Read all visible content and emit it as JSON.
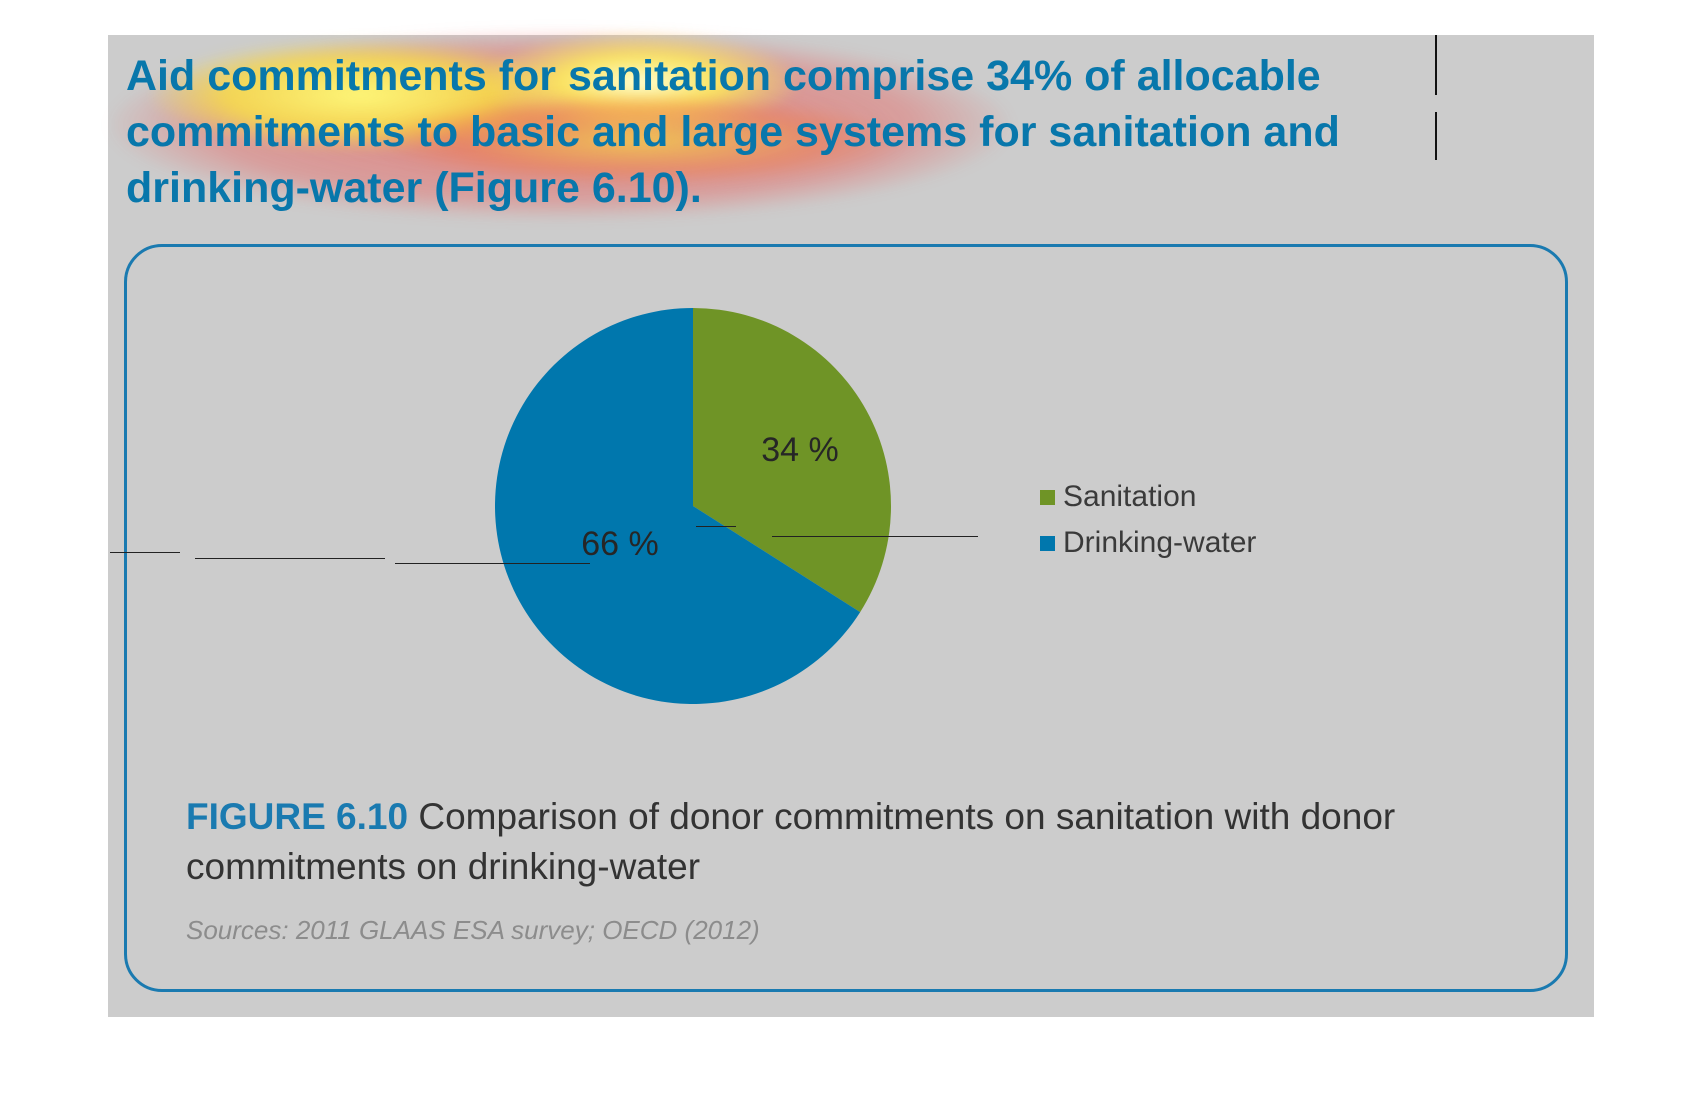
{
  "headline": "Aid commitments for sanitation comprise 34% of allocable commitments to basic and large systems for sanitation and drinking-water (Figure 6.10).",
  "colors": {
    "accent": "#1a7ab0",
    "sanitation": "#6f9426",
    "drinking_water": "#0077ad",
    "panel": "#cccccc",
    "heatmap_overlay": [
      "#ec5450",
      "#fce63c",
      "#fffbd2"
    ]
  },
  "figure": {
    "label": "FIGURE 6.10",
    "title": "Comparison of donor commitments on sanitation with donor commitments on drinking-water",
    "source": "Sources: 2011 GLAAS ESA survey; OECD (2012)"
  },
  "chart_data": {
    "type": "pie",
    "title": "",
    "categories": [
      "Sanitation",
      "Drinking-water"
    ],
    "values": [
      34,
      66
    ],
    "unit": "%",
    "data_labels": [
      "34 %",
      "66 %"
    ],
    "colors": [
      "#6f9426",
      "#0077ad"
    ],
    "legend": {
      "entries": [
        "Sanitation",
        "Drinking-water"
      ],
      "placement": "right"
    }
  }
}
